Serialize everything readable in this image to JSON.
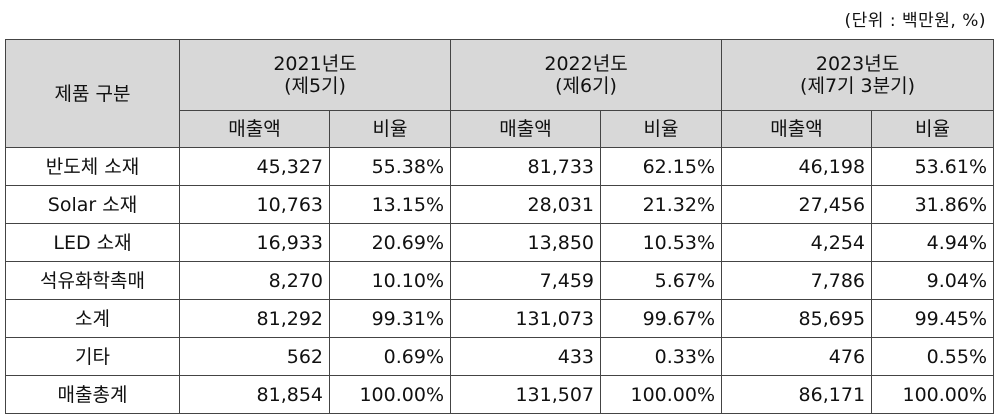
{
  "unit_note": "(단위 : 백만원, %)",
  "header": {
    "product_col": "제품 구분",
    "years": [
      {
        "line1": "2021년도",
        "line2": "(제5기)"
      },
      {
        "line1": "2022년도",
        "line2": "(제6기)"
      },
      {
        "line1": "2023년도",
        "line2": "(제7기 3분기)"
      }
    ],
    "sales_label": "매출액",
    "ratio_label": "비율"
  },
  "rows": [
    {
      "label": "반도체 소재",
      "v": [
        "45,327",
        "55.38%",
        "81,733",
        "62.15%",
        "46,198",
        "53.61%"
      ]
    },
    {
      "label": "Solar 소재",
      "v": [
        "10,763",
        "13.15%",
        "28,031",
        "21.32%",
        "27,456",
        "31.86%"
      ]
    },
    {
      "label": "LED 소재",
      "v": [
        "16,933",
        "20.69%",
        "13,850",
        "10.53%",
        "4,254",
        "4.94%"
      ]
    },
    {
      "label": "석유화학촉매",
      "v": [
        "8,270",
        "10.10%",
        "7,459",
        "5.67%",
        "7,786",
        "9.04%"
      ]
    },
    {
      "label": "소계",
      "v": [
        "81,292",
        "99.31%",
        "131,073",
        "99.67%",
        "85,695",
        "99.45%"
      ]
    },
    {
      "label": "기타",
      "v": [
        "562",
        "0.69%",
        "433",
        "0.33%",
        "476",
        "0.55%"
      ]
    },
    {
      "label": "매출총계",
      "v": [
        "81,854",
        "100.00%",
        "131,507",
        "100.00%",
        "86,171",
        "100.00%"
      ]
    }
  ]
}
